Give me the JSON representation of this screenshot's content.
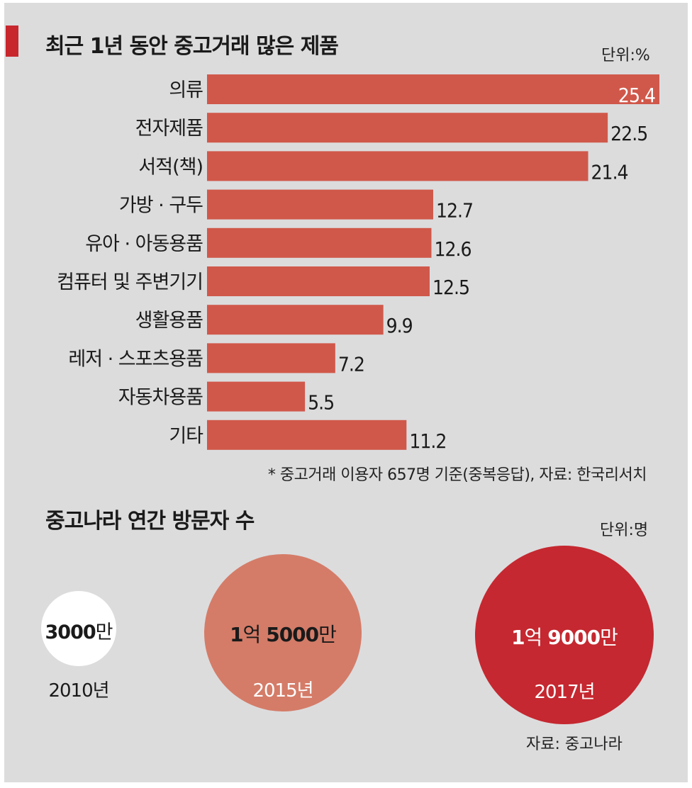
{
  "chart_data": {
    "type": "bar",
    "orientation": "horizontal",
    "title": "최근 1년 동안 중고거래 많은 제품",
    "unit": "단위:%",
    "categories": [
      "의류",
      "전자제품",
      "서적(책)",
      "가방 · 구두",
      "유아 · 아동용품",
      "컴퓨터 및 주변기기",
      "생활용품",
      "레저 · 스포츠용품",
      "자동차용품",
      "기타"
    ],
    "values": [
      25.4,
      22.5,
      21.4,
      12.7,
      12.6,
      12.5,
      9.9,
      7.2,
      5.5,
      11.2
    ],
    "value_labels": [
      "25.4",
      "22.5",
      "21.4",
      "12.7",
      "12.6",
      "12.5",
      "9.9",
      "7.2",
      "5.5",
      "11.2"
    ],
    "xlim": [
      0,
      25.4
    ],
    "bar_color": "#d0584a",
    "footnote": "* 중고거래 이용자 657명 기준(중복응답), 자료: 한국리서치"
  },
  "visitors": {
    "title": "중고나라 연간 방문자 수",
    "unit": "단위:명",
    "source": "자료: 중고나라",
    "items": [
      {
        "num_a": "",
        "suffix_a": "",
        "num_b": "3000",
        "suffix_b": "만",
        "year": "2010년",
        "value_millions": 30,
        "color": "#ffffff"
      },
      {
        "num_a": "1",
        "suffix_a": "억 ",
        "num_b": "5000",
        "suffix_b": "만",
        "year": "2015년",
        "value_millions": 150,
        "color": "#d47c68"
      },
      {
        "num_a": "1",
        "suffix_a": "억 ",
        "num_b": "9000",
        "suffix_b": "만",
        "year": "2017년",
        "value_millions": 190,
        "color": "#c52830"
      }
    ]
  }
}
